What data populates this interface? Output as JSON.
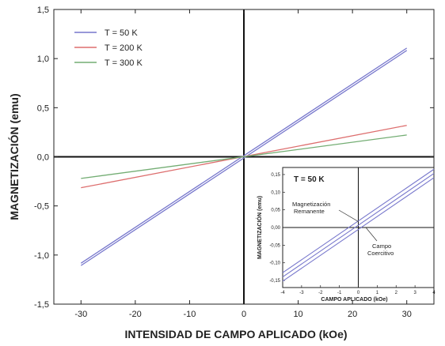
{
  "chart_data": [
    {
      "type": "line",
      "xlabel": "INTENSIDAD DE CAMPO APLICADO (kOe)",
      "ylabel": "MAGNETIZACIÓN (emu)",
      "xlim": [
        -35,
        35
      ],
      "ylim": [
        -1.5,
        1.5
      ],
      "xticks": [
        -30,
        -20,
        -10,
        0,
        10,
        20,
        30
      ],
      "xtick_labels": [
        "-30",
        "-20",
        "-10",
        "0",
        "10",
        "20",
        "30"
      ],
      "yticks": [
        -1.5,
        -1.0,
        -0.5,
        0.0,
        0.5,
        1.0,
        1.5
      ],
      "ytick_labels": [
        "-1,5",
        "-1,0",
        "-0,5",
        "0,0",
        "0,5",
        "1,0",
        "1,5"
      ],
      "grid": false,
      "legend_position": "top-left",
      "series": [
        {
          "name": "T =  50 K",
          "color": "#7777cc",
          "loop": true,
          "x": [
            -30,
            30
          ],
          "y": [
            -1.095,
            1.095
          ],
          "offset": 0.012
        },
        {
          "name": "T = 200 K",
          "color": "#dd6e6e",
          "loop": false,
          "x": [
            -30,
            30
          ],
          "y": [
            -0.315,
            0.32
          ],
          "offset": 0
        },
        {
          "name": "T = 300 K",
          "color": "#73ad73",
          "loop": false,
          "x": [
            -30,
            30
          ],
          "y": [
            -0.22,
            0.222
          ],
          "offset": 0
        }
      ]
    },
    {
      "type": "line",
      "title": "T =   50 K",
      "xlabel": "CAMPO APLICADO (kOe)",
      "ylabel": "MAGNETIZACIÓN (emu)",
      "xlim": [
        -4,
        4
      ],
      "ylim": [
        -0.17,
        0.17
      ],
      "xticks": [
        -4,
        -3,
        -2,
        -1,
        0,
        1,
        2,
        3,
        4
      ],
      "xtick_labels": [
        "-4",
        "-3",
        "-2",
        "-1",
        "0",
        "1",
        "2",
        "3",
        "4"
      ],
      "yticks": [
        -0.15,
        -0.1,
        -0.05,
        0.0,
        0.05,
        0.1,
        0.15
      ],
      "ytick_labels": [
        "-0,15",
        "-0,10",
        "-0,05",
        "0,00",
        "0,05",
        "0,10",
        "0,15"
      ],
      "series": [
        {
          "color": "#7777cc",
          "x": [
            -4,
            4
          ],
          "y": [
            -0.128,
            0.165
          ]
        },
        {
          "color": "#7777cc",
          "x": [
            -4,
            4
          ],
          "y": [
            -0.14,
            0.153
          ]
        },
        {
          "color": "#7777cc",
          "x": [
            -4,
            4
          ],
          "y": [
            -0.152,
            0.141
          ]
        }
      ],
      "annotations": [
        {
          "text": [
            "Magnetización",
            "Remanente"
          ],
          "points_to": [
            0,
            0.017
          ]
        },
        {
          "text": [
            "Campo",
            "Coercitivo"
          ],
          "points_to": [
            0.4,
            0
          ]
        }
      ]
    }
  ]
}
